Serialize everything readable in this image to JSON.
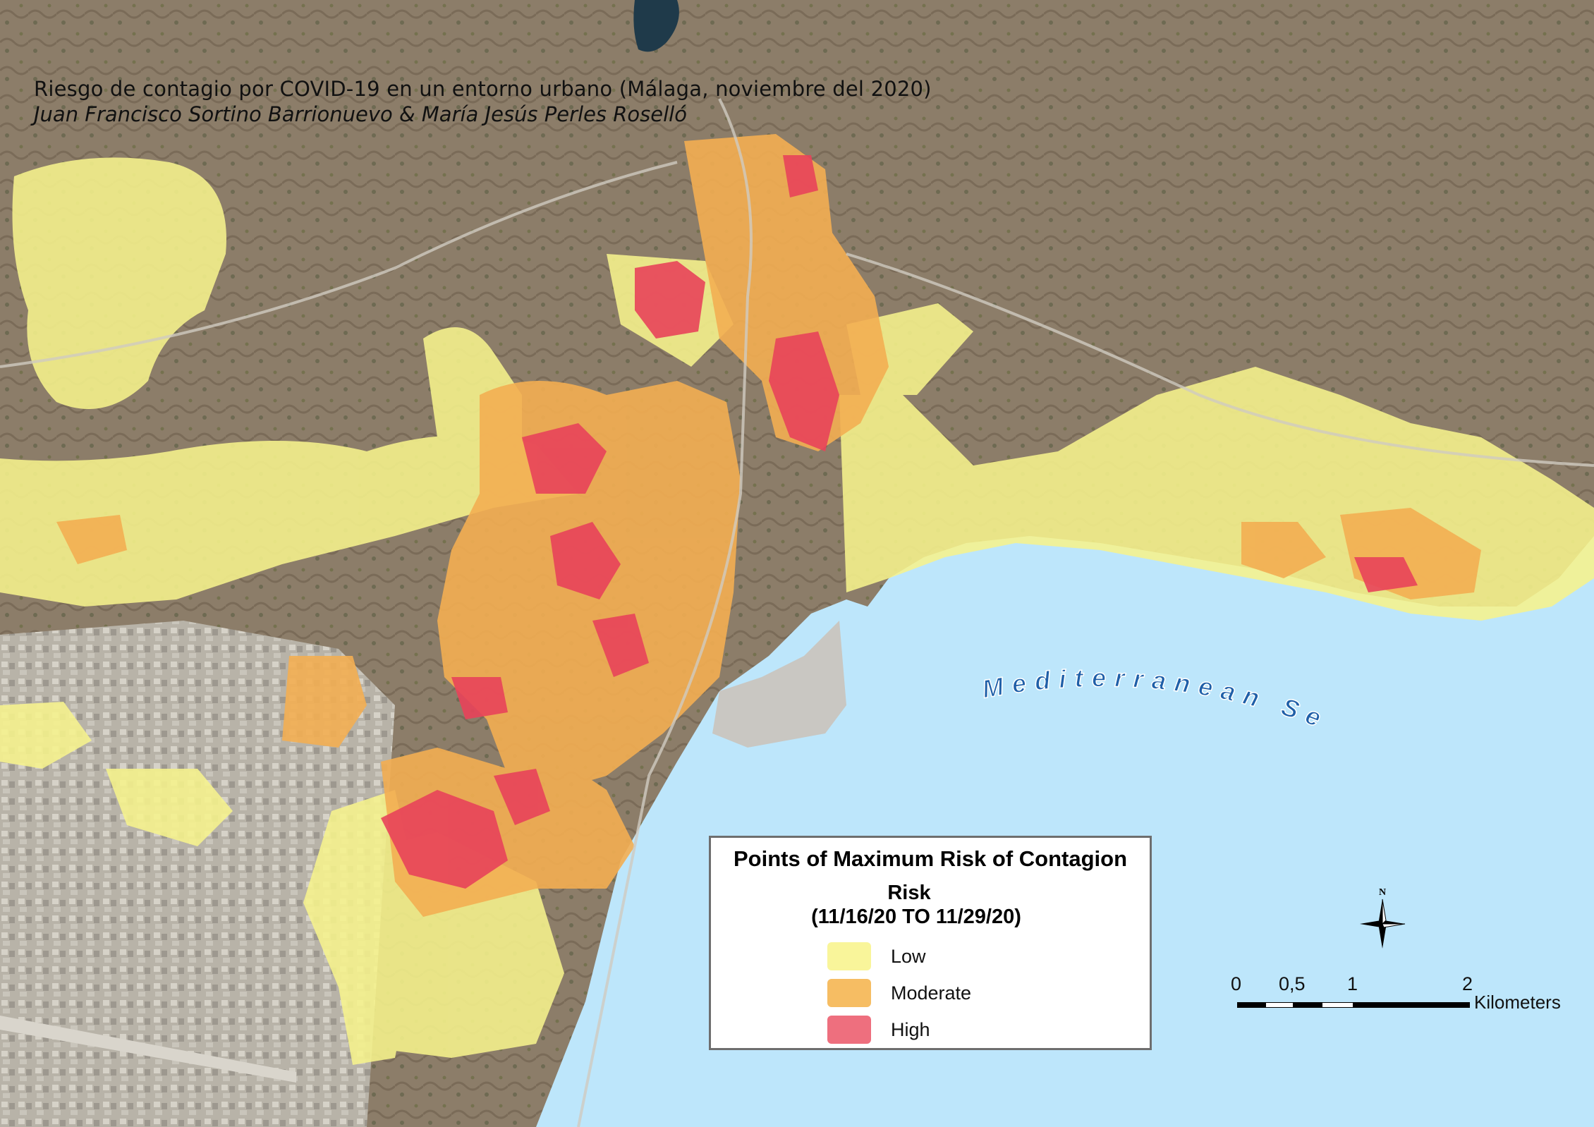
{
  "map": {
    "title": "Riesgo de contagio por COVID-19 en un entorno urbano (Málaga, noviembre del 2020)",
    "authors": "Juan Francisco Sortino Barrionuevo & María Jesús Perles Roselló",
    "sea_label": "Mediterranean Sea",
    "colors": {
      "land": "#8a7a66",
      "land_dark": "#6f6250",
      "sea": "#bde6fb",
      "low": "#f6f38c",
      "moderate": "#f3ae52",
      "high": "#e8435a"
    }
  },
  "legend": {
    "title": "Points of Maximum Risk of Contagion",
    "subtitle": "Risk",
    "period": "(11/16/20 TO 11/29/20)",
    "items": [
      {
        "label": "Low",
        "color": "#f9f59a"
      },
      {
        "label": "Moderate",
        "color": "#f6bd63"
      },
      {
        "label": "High",
        "color": "#ee6f7e"
      }
    ]
  },
  "north_arrow": {
    "label": "N"
  },
  "scale_bar": {
    "ticks": [
      "0",
      "0,5",
      "1",
      "2"
    ],
    "unit": "Kilometers"
  }
}
